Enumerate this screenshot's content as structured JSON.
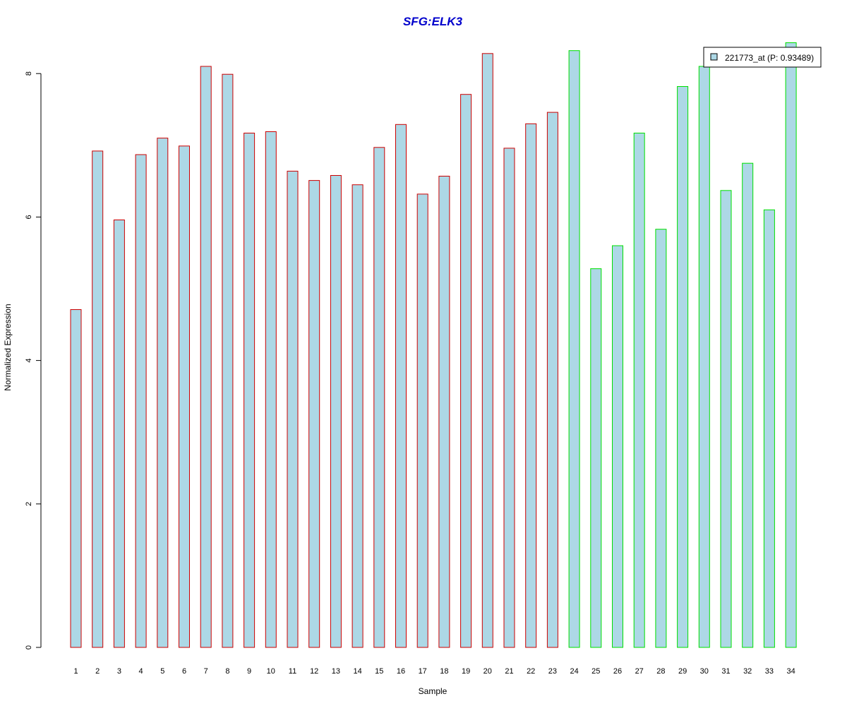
{
  "chart_data": {
    "type": "bar",
    "title": "SFG:ELK3",
    "xlabel": "Sample",
    "ylabel": "Normalized Expression",
    "ylim": [
      0,
      8.5
    ],
    "yticks": [
      0,
      2,
      4,
      6,
      8
    ],
    "categories": [
      "1",
      "2",
      "3",
      "4",
      "5",
      "6",
      "7",
      "8",
      "9",
      "10",
      "11",
      "12",
      "13",
      "14",
      "15",
      "16",
      "17",
      "18",
      "19",
      "20",
      "21",
      "22",
      "23",
      "24",
      "25",
      "26",
      "27",
      "28",
      "29",
      "30",
      "31",
      "32",
      "33",
      "34"
    ],
    "series": [
      {
        "name": "221773_at (P: 0.93489)",
        "values": [
          4.71,
          6.92,
          5.96,
          6.87,
          7.1,
          6.99,
          8.1,
          7.99,
          7.17,
          7.19,
          6.64,
          6.51,
          6.58,
          6.45,
          6.97,
          7.29,
          6.32,
          6.57,
          7.71,
          8.28,
          6.96,
          7.3,
          7.46,
          8.32,
          5.28,
          5.6,
          7.17,
          5.83,
          7.82,
          8.1,
          6.37,
          6.75,
          6.1,
          8.43
        ],
        "groups": [
          "a",
          "a",
          "a",
          "a",
          "a",
          "a",
          "a",
          "a",
          "a",
          "a",
          "a",
          "a",
          "a",
          "a",
          "a",
          "a",
          "a",
          "a",
          "a",
          "a",
          "a",
          "a",
          "a",
          "b",
          "b",
          "b",
          "b",
          "b",
          "b",
          "b",
          "b",
          "b",
          "b",
          "b"
        ]
      }
    ],
    "legend": {
      "position": "top-right",
      "label": "221773_at (P: 0.93489)"
    },
    "grid": false,
    "colors": {
      "title": "#0000CC",
      "bar_fill": "#ADD8E6",
      "group_a_border": "#CC0000",
      "group_b_border": "#00E000",
      "axis": "#000000"
    }
  }
}
